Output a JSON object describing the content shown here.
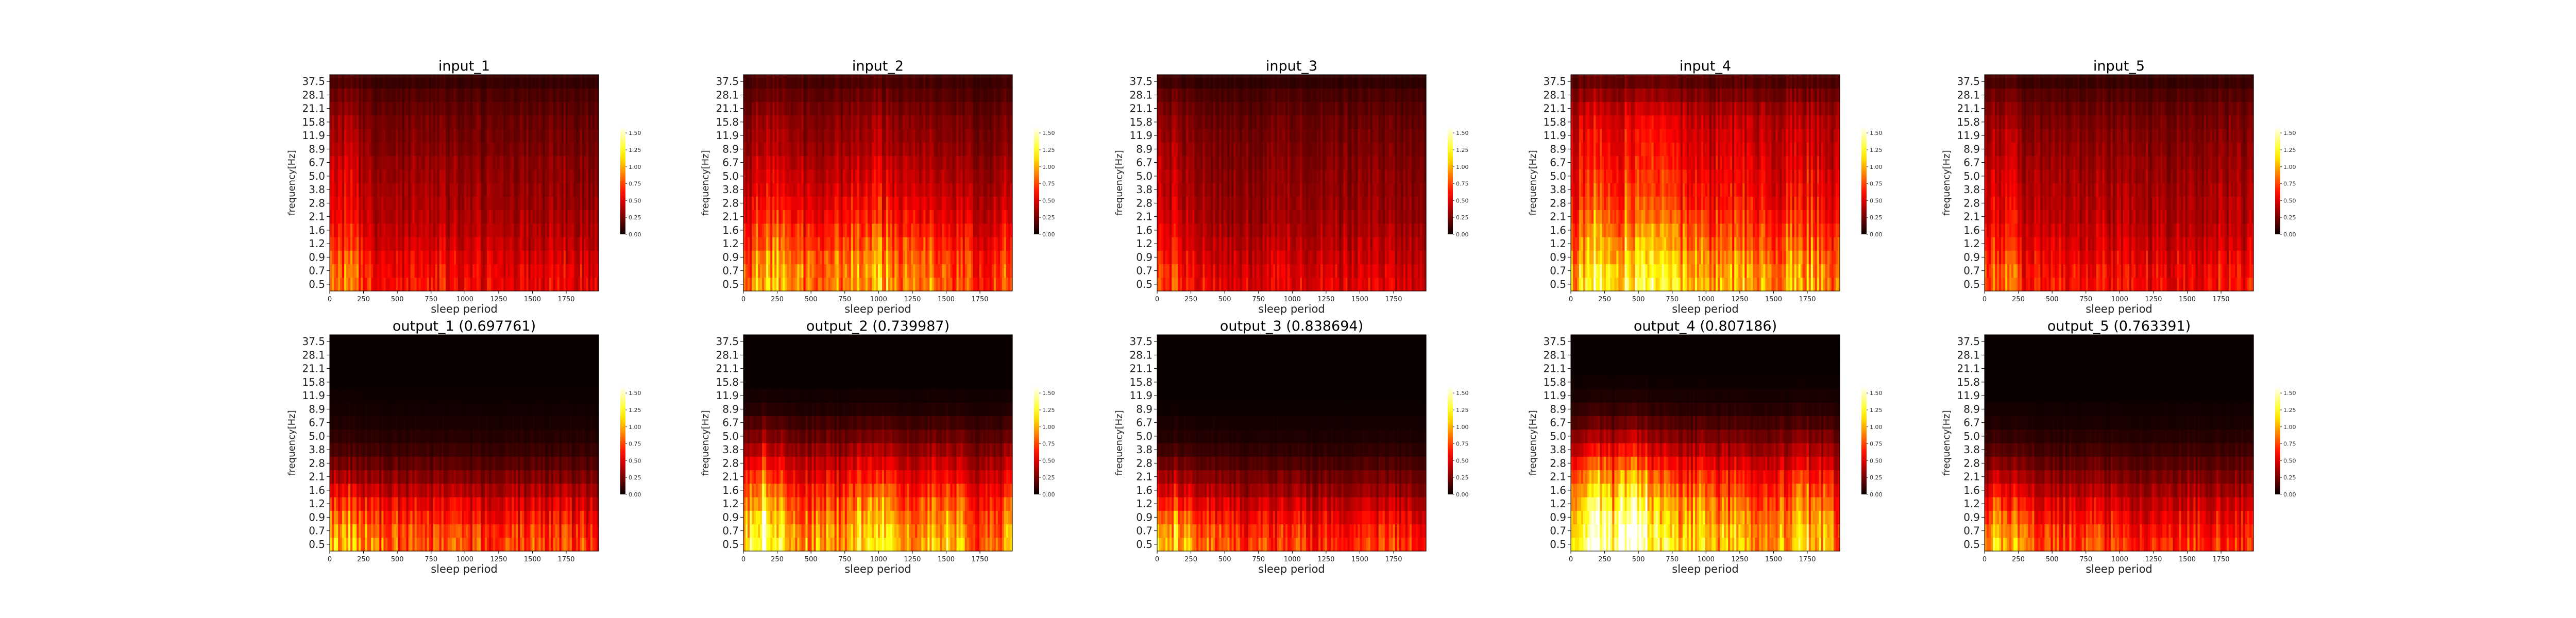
{
  "figure": {
    "xlabel": "sleep period",
    "ylabel": "frequency[Hz]",
    "y_ticks": [
      "0.5",
      "0.7",
      "0.9",
      "1.2",
      "1.6",
      "2.1",
      "2.8",
      "3.8",
      "5.0",
      "6.7",
      "8.9",
      "11.9",
      "15.8",
      "21.1",
      "28.1",
      "37.5"
    ],
    "x_ticks": [
      "0",
      "250",
      "500",
      "750",
      "1000",
      "1250",
      "1500",
      "1750"
    ],
    "x_range": [
      0,
      1990
    ],
    "colorbar": {
      "colormap": "hot",
      "ticks": [
        "0.00",
        "0.25",
        "0.50",
        "0.75",
        "1.00",
        "1.25",
        "1.50"
      ],
      "range": [
        0,
        1.6
      ]
    },
    "colors": {
      "low": "#0a0000",
      "mid_red": "#e60000",
      "orange": "#ff8c00",
      "yellow": "#ffff66",
      "white": "#ffffff"
    }
  },
  "chart_data": [
    {
      "type": "heatmap",
      "title": "input_1",
      "intensity_by_frequency": [
        0.62,
        0.6,
        0.56,
        0.5,
        0.45,
        0.42,
        0.4,
        0.38,
        0.36,
        0.34,
        0.3,
        0.28,
        0.26,
        0.22,
        0.18,
        0.12
      ],
      "intensity_over_time": {
        "x": [
          0,
          150,
          300,
          500,
          750,
          1000,
          1250,
          1500,
          1750,
          1990
        ],
        "y": [
          1.1,
          1.2,
          0.9,
          0.8,
          0.85,
          0.8,
          0.8,
          0.75,
          0.8,
          0.75
        ]
      }
    },
    {
      "type": "heatmap",
      "title": "input_2",
      "intensity_by_frequency": [
        0.7,
        0.68,
        0.64,
        0.58,
        0.52,
        0.46,
        0.42,
        0.38,
        0.35,
        0.32,
        0.28,
        0.26,
        0.24,
        0.2,
        0.16,
        0.12
      ],
      "intensity_over_time": {
        "x": [
          0,
          150,
          300,
          500,
          750,
          1000,
          1250,
          1500,
          1750,
          1990
        ],
        "y": [
          0.9,
          1.4,
          1.2,
          1.0,
          1.1,
          1.3,
          1.0,
          1.1,
          0.8,
          1.0
        ]
      }
    },
    {
      "type": "heatmap",
      "title": "input_3",
      "intensity_by_frequency": [
        0.55,
        0.52,
        0.48,
        0.44,
        0.4,
        0.37,
        0.35,
        0.33,
        0.32,
        0.3,
        0.28,
        0.26,
        0.24,
        0.2,
        0.16,
        0.1
      ],
      "intensity_over_time": {
        "x": [
          0,
          150,
          300,
          500,
          750,
          1000,
          1250,
          1500,
          1750,
          1990
        ],
        "y": [
          1.1,
          1.2,
          0.9,
          0.85,
          0.8,
          0.85,
          0.8,
          0.85,
          0.8,
          0.8
        ]
      }
    },
    {
      "type": "heatmap",
      "title": "input_4",
      "intensity_by_frequency": [
        0.8,
        0.78,
        0.72,
        0.66,
        0.6,
        0.55,
        0.5,
        0.47,
        0.45,
        0.42,
        0.4,
        0.38,
        0.35,
        0.3,
        0.22,
        0.15
      ],
      "intensity_over_time": {
        "x": [
          0,
          150,
          300,
          500,
          750,
          1000,
          1250,
          1500,
          1750,
          1990
        ],
        "y": [
          1.0,
          1.5,
          1.3,
          1.4,
          1.2,
          1.0,
          1.1,
          1.0,
          1.1,
          0.9
        ]
      }
    },
    {
      "type": "heatmap",
      "title": "input_5",
      "intensity_by_frequency": [
        0.62,
        0.6,
        0.55,
        0.5,
        0.46,
        0.43,
        0.41,
        0.39,
        0.37,
        0.35,
        0.32,
        0.3,
        0.27,
        0.23,
        0.18,
        0.12
      ],
      "intensity_over_time": {
        "x": [
          0,
          150,
          300,
          500,
          750,
          1000,
          1250,
          1500,
          1750,
          1990
        ],
        "y": [
          1.1,
          1.2,
          0.9,
          0.8,
          0.85,
          0.85,
          0.8,
          0.8,
          0.85,
          0.8
        ]
      }
    },
    {
      "type": "heatmap",
      "title": "output_1 (0.697761)",
      "intensity_by_frequency": [
        0.8,
        0.75,
        0.65,
        0.55,
        0.42,
        0.3,
        0.2,
        0.12,
        0.07,
        0.04,
        0.02,
        0.01,
        0.0,
        0.0,
        0.0,
        0.0
      ],
      "intensity_over_time": {
        "x": [
          0,
          150,
          300,
          500,
          750,
          1000,
          1250,
          1500,
          1750,
          1990
        ],
        "y": [
          1.1,
          1.2,
          0.95,
          0.85,
          0.85,
          0.8,
          0.75,
          0.8,
          0.8,
          0.75
        ]
      }
    },
    {
      "type": "heatmap",
      "title": "output_2 (0.739987)",
      "intensity_by_frequency": [
        0.9,
        0.85,
        0.78,
        0.7,
        0.6,
        0.5,
        0.4,
        0.3,
        0.2,
        0.12,
        0.05,
        0.02,
        0.0,
        0.0,
        0.0,
        0.0
      ],
      "intensity_over_time": {
        "x": [
          0,
          150,
          300,
          500,
          750,
          1000,
          1250,
          1500,
          1750,
          1990
        ],
        "y": [
          0.9,
          1.5,
          1.1,
          0.9,
          0.9,
          1.3,
          0.8,
          1.1,
          0.7,
          0.9
        ]
      }
    },
    {
      "type": "heatmap",
      "title": "output_3 (0.838694)",
      "intensity_by_frequency": [
        0.78,
        0.72,
        0.62,
        0.5,
        0.38,
        0.28,
        0.18,
        0.1,
        0.05,
        0.03,
        0.01,
        0.0,
        0.0,
        0.0,
        0.0,
        0.0
      ],
      "intensity_over_time": {
        "x": [
          0,
          150,
          300,
          500,
          750,
          1000,
          1250,
          1500,
          1750,
          1990
        ],
        "y": [
          1.1,
          1.3,
          0.9,
          0.8,
          0.75,
          0.8,
          0.75,
          0.8,
          0.8,
          0.75
        ]
      }
    },
    {
      "type": "heatmap",
      "title": "output_4 (0.807186)",
      "intensity_by_frequency": [
        0.95,
        0.92,
        0.85,
        0.78,
        0.68,
        0.58,
        0.46,
        0.35,
        0.24,
        0.14,
        0.07,
        0.03,
        0.01,
        0.0,
        0.0,
        0.0
      ],
      "intensity_over_time": {
        "x": [
          0,
          150,
          300,
          500,
          750,
          1000,
          1250,
          1500,
          1750,
          1990
        ],
        "y": [
          1.0,
          1.6,
          1.2,
          1.5,
          1.0,
          1.0,
          0.9,
          0.9,
          1.0,
          0.8
        ]
      }
    },
    {
      "type": "heatmap",
      "title": "output_5 (0.763391)",
      "intensity_by_frequency": [
        0.78,
        0.72,
        0.63,
        0.53,
        0.42,
        0.32,
        0.22,
        0.14,
        0.08,
        0.04,
        0.02,
        0.0,
        0.0,
        0.0,
        0.0,
        0.0
      ],
      "intensity_over_time": {
        "x": [
          0,
          150,
          300,
          500,
          750,
          1000,
          1250,
          1500,
          1750,
          1990
        ],
        "y": [
          1.1,
          1.3,
          0.95,
          0.85,
          0.85,
          0.8,
          0.75,
          0.8,
          0.8,
          0.75
        ]
      }
    }
  ]
}
